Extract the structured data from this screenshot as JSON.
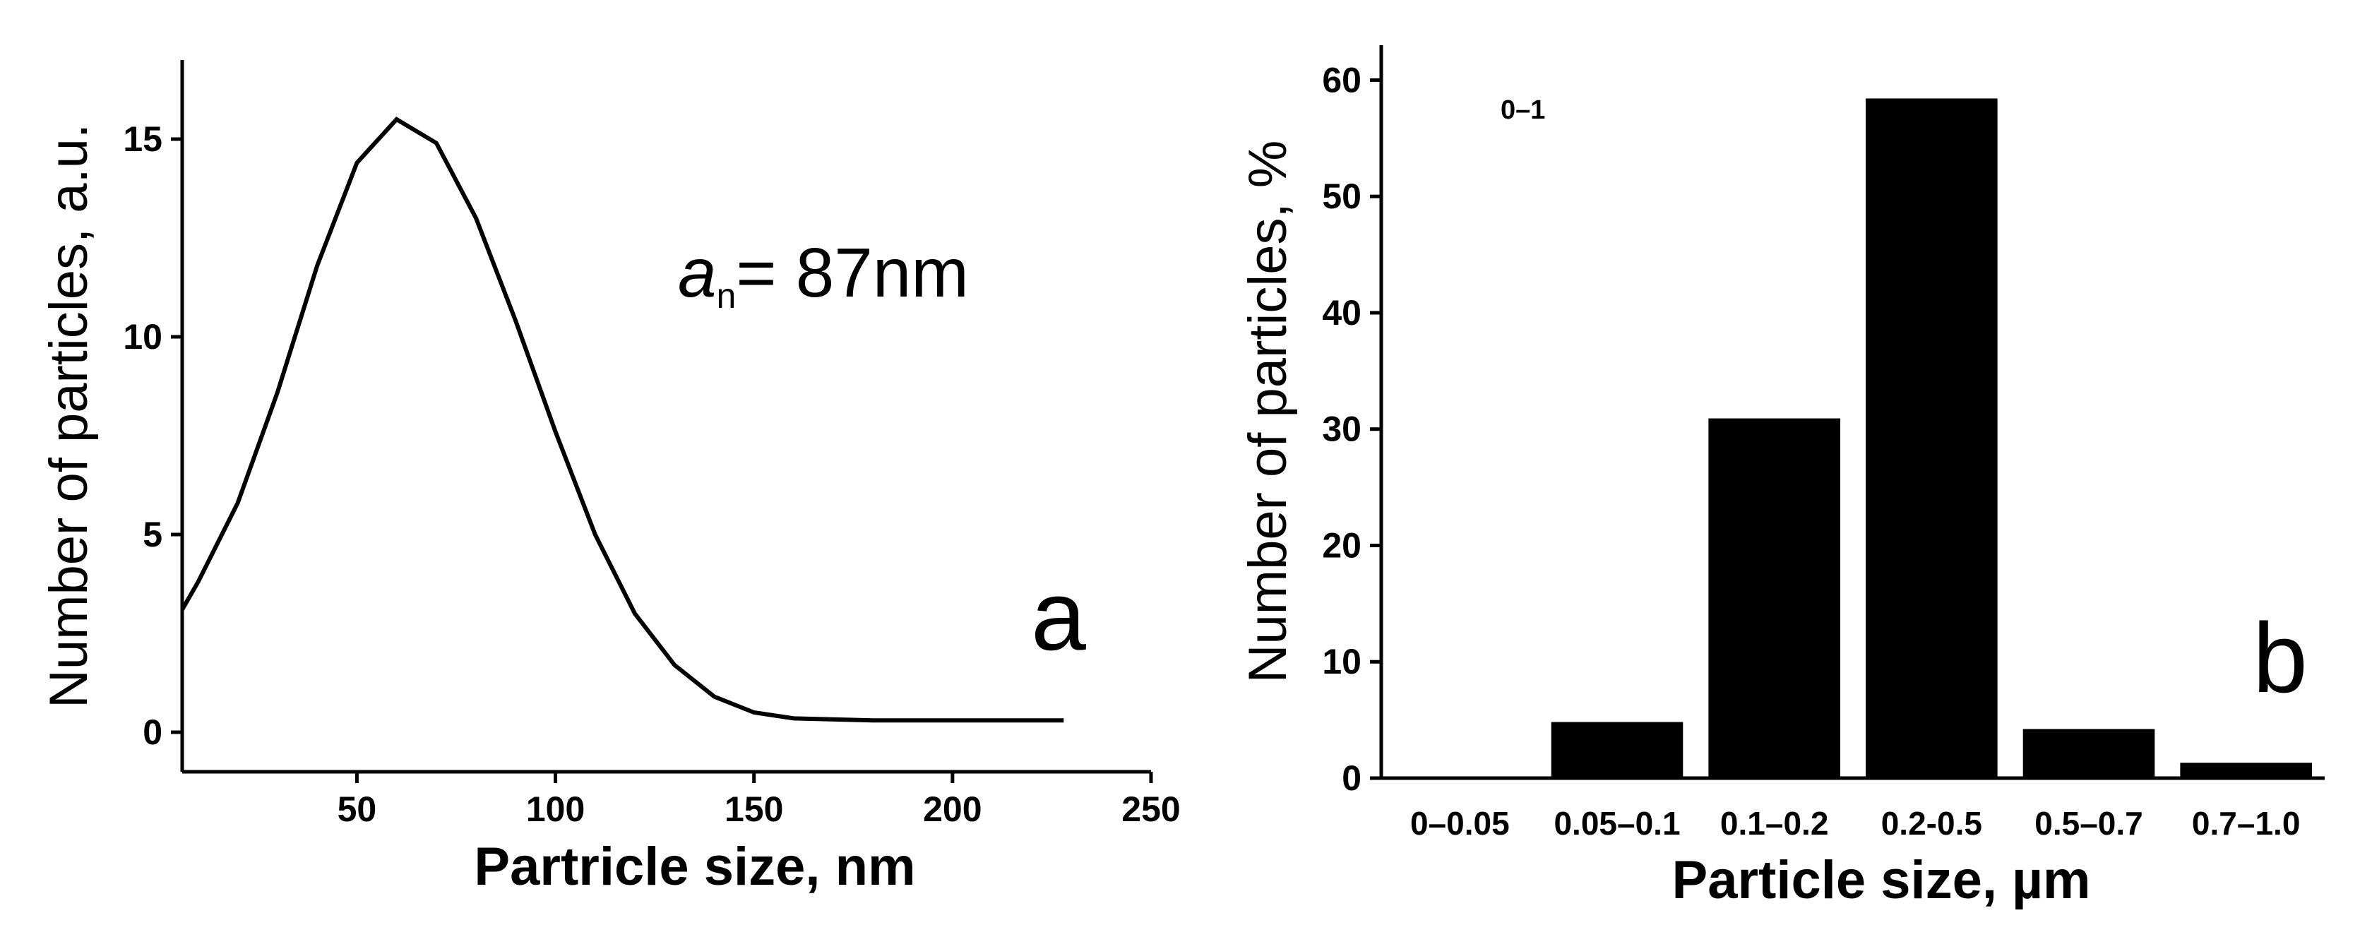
{
  "chart_data": [
    {
      "type": "line",
      "panel_label": "a",
      "x_label": "Partricle size, nm",
      "y_label": "Number of particles, a.u.",
      "annotation": {
        "symbol": "a",
        "subscript": "n",
        "text": "= 87nm"
      },
      "x": [
        6,
        10,
        20,
        30,
        40,
        50,
        60,
        70,
        80,
        90,
        100,
        110,
        120,
        130,
        140,
        150,
        160,
        180,
        200,
        228
      ],
      "values": [
        3.1,
        3.8,
        5.8,
        8.6,
        11.8,
        14.4,
        15.5,
        14.9,
        13.0,
        10.4,
        7.6,
        5.0,
        3.0,
        1.7,
        0.9,
        0.5,
        0.35,
        0.3,
        0.3,
        0.3
      ],
      "color": "#000000",
      "xlim": [
        6,
        250
      ],
      "xticks": [
        50,
        100,
        150,
        200,
        250
      ],
      "ylim": [
        -1,
        17
      ],
      "yticks": [
        0,
        5,
        10,
        15
      ]
    },
    {
      "type": "bar",
      "panel_label": "b",
      "x_label": "Particle size, µm",
      "y_label": "Number of particles, %",
      "annotation": {
        "text": "0–1"
      },
      "categories": [
        "0–0.05",
        "0.05–0.1",
        "0.1–0.2",
        "0.2-0.5",
        "0.5–0.7",
        "0.7–1.0"
      ],
      "values": [
        0,
        4.7,
        30.8,
        58.3,
        4.1,
        1.2
      ],
      "color": "#000000",
      "ylim": [
        0,
        63
      ],
      "yticks": [
        0,
        10,
        20,
        30,
        40,
        50,
        60
      ]
    }
  ]
}
